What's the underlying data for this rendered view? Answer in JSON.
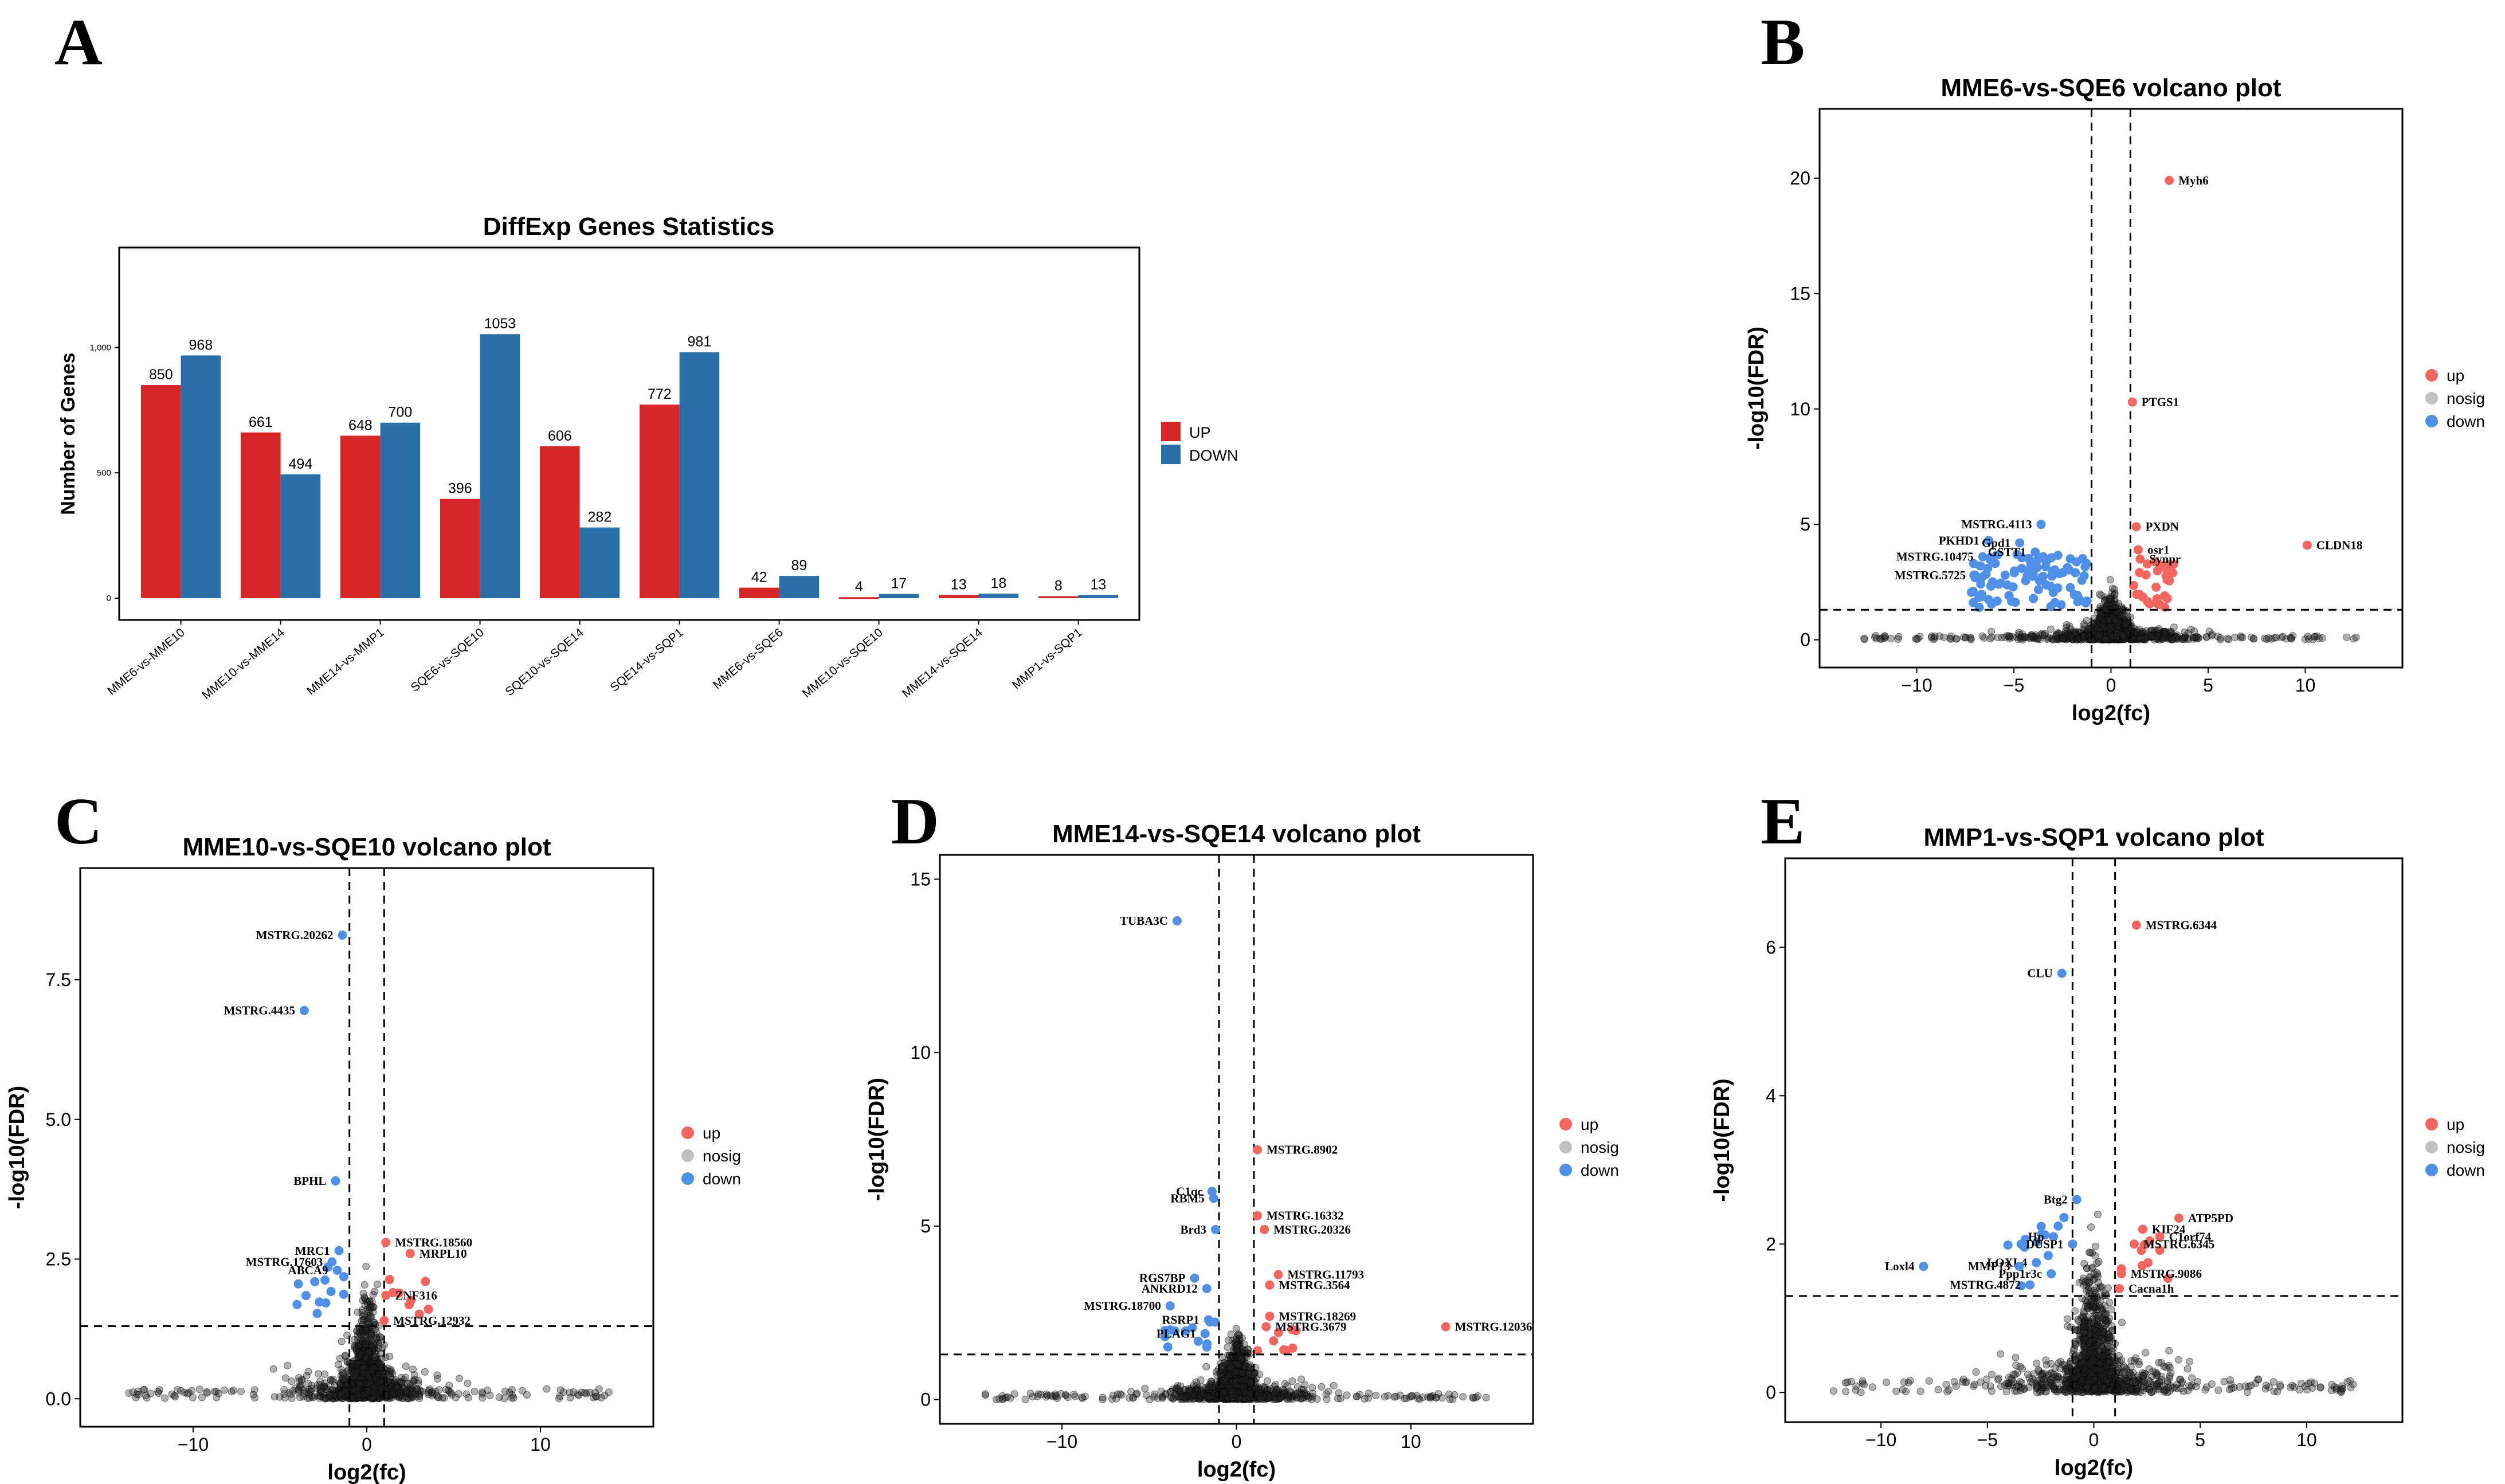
{
  "panels": {
    "A": "A",
    "B": "B",
    "C": "C",
    "D": "D",
    "E": "E"
  },
  "colors": {
    "up": "#d62728",
    "down": "#2a6fa8",
    "volc_up": "#f2665f",
    "volc_down": "#4f8fe6",
    "nosig": "#222222",
    "nosig_legend": "#c0c0c0"
  },
  "chart_data": [
    {
      "id": "A",
      "type": "bar",
      "title": "DiffExp Genes Statistics",
      "ylabel": "Number of Genes",
      "xlabel": "",
      "ylim": [
        0,
        1330
      ],
      "yticks": [
        0,
        500,
        1000
      ],
      "ytick_labels": [
        "0",
        "500",
        "1,000"
      ],
      "categories": [
        "MME6-vs-MME10",
        "MME10-vs-MME14",
        "MME14-vs-MMP1",
        "SQE6-vs-SQE10",
        "SQE10-vs-SQE14",
        "SQE14-vs-SQP1",
        "MME6-vs-SQE6",
        "MME10-vs-SQE10",
        "MME14-vs-SQE14",
        "MMP1-vs-SQP1"
      ],
      "series": [
        {
          "name": "UP",
          "color": "#d62728",
          "values": [
            850,
            661,
            648,
            396,
            606,
            772,
            42,
            4,
            13,
            8
          ]
        },
        {
          "name": "DOWN",
          "color": "#2a6fa8",
          "values": [
            968,
            494,
            700,
            1053,
            282,
            981,
            89,
            17,
            18,
            13
          ]
        }
      ],
      "grid": false,
      "legend": "right"
    },
    {
      "id": "B",
      "type": "scatter",
      "title": "MME6-vs-SQE6 volcano plot",
      "xlabel": "log2(fc)",
      "ylabel": "-log10(FDR)",
      "xlim": [
        -15,
        15
      ],
      "ylim": [
        -1.2,
        23
      ],
      "xticks": [
        -10,
        -5,
        0,
        5,
        10
      ],
      "yticks": [
        0,
        5,
        10,
        15,
        20
      ],
      "vlines": [
        -1,
        1
      ],
      "hline": 1.3,
      "legend": [
        "up",
        "nosig",
        "down"
      ],
      "labeled": [
        {
          "label": "Myh6",
          "x": 3,
          "y": 19.9,
          "cls": "up"
        },
        {
          "label": "PTGS1",
          "x": 1.1,
          "y": 10.3,
          "cls": "up"
        },
        {
          "label": "PXDN",
          "x": 1.3,
          "y": 4.9,
          "cls": "up"
        },
        {
          "label": "osr1",
          "x": 1.4,
          "y": 3.9,
          "cls": "up"
        },
        {
          "label": "Synpr",
          "x": 1.5,
          "y": 3.5,
          "cls": "up"
        },
        {
          "label": "CLDN18",
          "x": 10.1,
          "y": 4.1,
          "cls": "up"
        },
        {
          "label": "MSTRG.4113",
          "x": -3.6,
          "y": 5.0,
          "cls": "down"
        },
        {
          "label": "PKHD1",
          "x": -6.3,
          "y": 4.3,
          "cls": "down"
        },
        {
          "label": "Gpd1",
          "x": -4.7,
          "y": 4.2,
          "cls": "down"
        },
        {
          "label": "GSTT1",
          "x": -3.9,
          "y": 3.8,
          "cls": "down"
        },
        {
          "label": "MSTRG.10475",
          "x": -6.6,
          "y": 3.6,
          "cls": "down"
        },
        {
          "label": "MSTRG.5725",
          "x": -7.0,
          "y": 2.8,
          "cls": "down"
        }
      ]
    },
    {
      "id": "C",
      "type": "scatter",
      "title": "MME10-vs-SQE10 volcano plot",
      "xlabel": "log2(fc)",
      "ylabel": "-log10(FDR)",
      "xlim": [
        -16.5,
        16.5
      ],
      "ylim": [
        -0.5,
        9.5
      ],
      "xticks": [
        -10,
        0,
        10
      ],
      "yticks": [
        0,
        2.5,
        5.0,
        7.5
      ],
      "ytick_labels": [
        "0.0",
        "2.5",
        "5.0",
        "7.5"
      ],
      "vlines": [
        -1,
        1
      ],
      "hline": 1.3,
      "legend": [
        "up",
        "nosig",
        "down"
      ],
      "labeled": [
        {
          "label": "MSTRG.20262",
          "x": -1.4,
          "y": 8.3,
          "cls": "down"
        },
        {
          "label": "MSTRG.4435",
          "x": -3.6,
          "y": 6.95,
          "cls": "down"
        },
        {
          "label": "BPHL",
          "x": -1.8,
          "y": 3.9,
          "cls": "down"
        },
        {
          "label": "MRC1",
          "x": -1.6,
          "y": 2.65,
          "cls": "down"
        },
        {
          "label": "MSTRG.17603",
          "x": -2.0,
          "y": 2.45,
          "cls": "down"
        },
        {
          "label": "ABCA9",
          "x": -1.7,
          "y": 2.3,
          "cls": "down"
        },
        {
          "label": "MSTRG.18560",
          "x": 1.1,
          "y": 2.8,
          "cls": "up"
        },
        {
          "label": "MRPL10",
          "x": 2.5,
          "y": 2.6,
          "cls": "up"
        },
        {
          "label": "ZNF316",
          "x": 1.1,
          "y": 1.85,
          "cls": "up"
        },
        {
          "label": "MSTRG.12932",
          "x": 1.0,
          "y": 1.4,
          "cls": "up"
        }
      ]
    },
    {
      "id": "D",
      "type": "scatter",
      "title": "MME14-vs-SQE14 volcano plot",
      "xlabel": "log2(fc)",
      "ylabel": "-log10(FDR)",
      "xlim": [
        -17,
        17
      ],
      "ylim": [
        -0.7,
        15.7
      ],
      "xticks": [
        -10,
        0,
        10
      ],
      "yticks": [
        0,
        5,
        10,
        15
      ],
      "vlines": [
        -1,
        1
      ],
      "hline": 1.3,
      "legend": [
        "up",
        "nosig",
        "down"
      ],
      "labeled": [
        {
          "label": "TUBA3C",
          "x": -3.4,
          "y": 13.8,
          "cls": "down"
        },
        {
          "label": "MSTRG.8902",
          "x": 1.2,
          "y": 7.2,
          "cls": "up"
        },
        {
          "label": "C1qc",
          "x": -1.4,
          "y": 6.0,
          "cls": "down"
        },
        {
          "label": "RBM5",
          "x": -1.3,
          "y": 5.8,
          "cls": "down"
        },
        {
          "label": "MSTRG.16332",
          "x": 1.2,
          "y": 5.3,
          "cls": "up"
        },
        {
          "label": "MSTRG.20326",
          "x": 1.6,
          "y": 4.9,
          "cls": "up"
        },
        {
          "label": "Brd3",
          "x": -1.2,
          "y": 4.9,
          "cls": "down"
        },
        {
          "label": "MSTRG.11793",
          "x": 2.4,
          "y": 3.6,
          "cls": "up"
        },
        {
          "label": "MSTRG.3564",
          "x": 1.9,
          "y": 3.3,
          "cls": "up"
        },
        {
          "label": "RGS7BP",
          "x": -2.4,
          "y": 3.5,
          "cls": "down"
        },
        {
          "label": "ANKRD12",
          "x": -1.7,
          "y": 3.2,
          "cls": "down"
        },
        {
          "label": "MSTRG.18700",
          "x": -3.8,
          "y": 2.7,
          "cls": "down"
        },
        {
          "label": "MSTRG.18269",
          "x": 1.9,
          "y": 2.4,
          "cls": "up"
        },
        {
          "label": "RSRP1",
          "x": -1.6,
          "y": 2.3,
          "cls": "down"
        },
        {
          "label": "MSTRG.3679",
          "x": 1.7,
          "y": 2.1,
          "cls": "up"
        },
        {
          "label": "PLAG1",
          "x": -1.8,
          "y": 1.9,
          "cls": "down"
        },
        {
          "label": "MSTRG.12036",
          "x": 12,
          "y": 2.1,
          "cls": "up"
        }
      ]
    },
    {
      "id": "E",
      "type": "scatter",
      "title": "MMP1-vs-SQP1 volcano plot",
      "xlabel": "log2(fc)",
      "ylabel": "-log10(FDR)",
      "xlim": [
        -14.5,
        14.5
      ],
      "ylim": [
        -0.4,
        7.2
      ],
      "xticks": [
        -10,
        -5,
        0,
        5,
        10
      ],
      "yticks": [
        0,
        2,
        4,
        6
      ],
      "vlines": [
        -1,
        1
      ],
      "hline": 1.3,
      "legend": [
        "up",
        "nosig",
        "down"
      ],
      "labeled": [
        {
          "label": "MSTRG.6344",
          "x": 2.0,
          "y": 6.3,
          "cls": "up"
        },
        {
          "label": "CLU",
          "x": -1.5,
          "y": 5.65,
          "cls": "down"
        },
        {
          "label": "Btg2",
          "x": -0.8,
          "y": 2.6,
          "cls": "down"
        },
        {
          "label": "ATP5PD",
          "x": 4.0,
          "y": 2.35,
          "cls": "up"
        },
        {
          "label": "KIF24",
          "x": 2.3,
          "y": 2.2,
          "cls": "up"
        },
        {
          "label": "C1orf74",
          "x": 3.1,
          "y": 2.1,
          "cls": "up"
        },
        {
          "label": "Hp",
          "x": -1.9,
          "y": 2.1,
          "cls": "down"
        },
        {
          "label": "DUSP1",
          "x": -1.0,
          "y": 2.0,
          "cls": "down"
        },
        {
          "label": "MSTRG.6345",
          "x": 1.9,
          "y": 2.0,
          "cls": "up"
        },
        {
          "label": "LOXL4",
          "x": -2.7,
          "y": 1.75,
          "cls": "down"
        },
        {
          "label": "Loxl4",
          "x": -8.0,
          "y": 1.7,
          "cls": "down"
        },
        {
          "label": "MMP13",
          "x": -3.5,
          "y": 1.7,
          "cls": "down"
        },
        {
          "label": "Ppp1r3c",
          "x": -2.0,
          "y": 1.6,
          "cls": "down"
        },
        {
          "label": "MSTRG.9086",
          "x": 1.3,
          "y": 1.6,
          "cls": "up"
        },
        {
          "label": "MSTRG.4872",
          "x": -3.0,
          "y": 1.45,
          "cls": "down"
        },
        {
          "label": "Cacna1h",
          "x": 1.2,
          "y": 1.4,
          "cls": "up"
        }
      ]
    }
  ]
}
